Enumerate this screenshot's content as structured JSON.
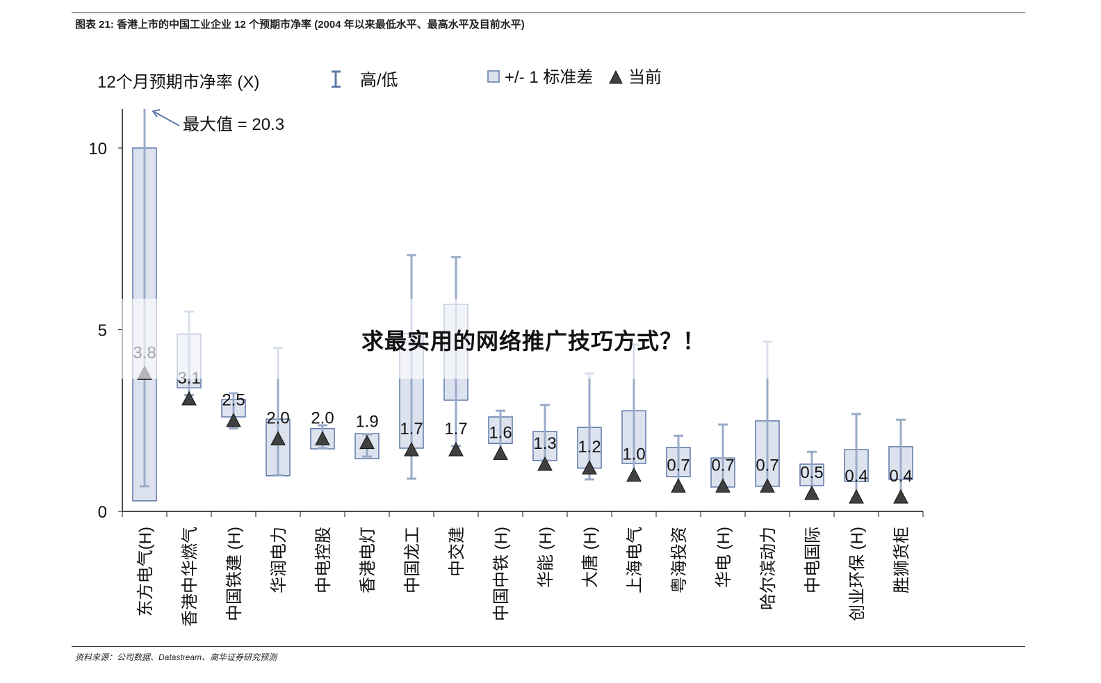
{
  "figure_title": "图表 21:   香港上市的中国工业企业 12 个预期市净率 (2004 年以来最低水平、最高水平及目前水平)",
  "source": "资料来源：公司数据、Datastream、高华证券研究预测",
  "watermark": "求最实用的网络推广技巧方式？！",
  "colors": {
    "box_fill": "#dde3ee",
    "box_stroke": "#5f78a8",
    "whisker": "#9aabc8",
    "marker": "#404040"
  },
  "chart_data": {
    "type": "box",
    "ylabel": "12个月预期市净率 (X)",
    "ylim": [
      0,
      11
    ],
    "yticks": [
      0,
      5,
      10
    ],
    "grid": false,
    "legend": {
      "position": "top",
      "items": [
        {
          "icon": "whisker-icon",
          "label": "高/低"
        },
        {
          "icon": "box-icon",
          "label": "+/- 1 标准差"
        },
        {
          "icon": "triangle-icon",
          "label": "当前"
        }
      ]
    },
    "annotation": "最大值 = 20.3",
    "categories": [
      "东方电气(H)",
      "香港中华燃气",
      "中国铁建 (H)",
      "华润电力",
      "中电控股",
      "香港电灯",
      "中国龙工",
      "中交建",
      "中国中铁 (H)",
      "华能 (H)",
      "大唐 (H)",
      "上海电气",
      "粤海投资",
      "华电 (H)",
      "哈尔滨动力",
      "中电国际",
      "创业环保 (H)",
      "胜狮货柜"
    ],
    "high": [
      20.3,
      5.5,
      3.25,
      4.5,
      2.37,
      2.12,
      7.05,
      7.0,
      2.77,
      2.93,
      3.79,
      4.59,
      2.08,
      2.39,
      4.67,
      1.64,
      2.68,
      2.52
    ],
    "low": [
      0.69,
      3.2,
      2.28,
      1.0,
      1.74,
      1.51,
      0.9,
      1.8,
      1.45,
      1.4,
      0.88,
      0.88,
      0.69,
      0.67,
      0.69,
      0.46,
      0.36,
      0.25
    ],
    "sd_upper": [
      10.0,
      4.88,
      3.08,
      2.54,
      2.28,
      2.14,
      4.9,
      5.7,
      2.6,
      2.2,
      2.31,
      2.77,
      1.76,
      1.47,
      2.49,
      1.3,
      1.7,
      1.78
    ],
    "sd_lower": [
      0.29,
      3.4,
      2.6,
      0.98,
      1.72,
      1.45,
      1.74,
      3.06,
      1.87,
      1.4,
      1.19,
      1.32,
      0.96,
      0.67,
      0.69,
      0.71,
      0.82,
      0.88
    ],
    "current": [
      3.8,
      3.1,
      2.5,
      2.0,
      2.0,
      1.9,
      1.7,
      1.7,
      1.6,
      1.3,
      1.2,
      1.0,
      0.7,
      0.7,
      0.7,
      0.5,
      0.4,
      0.4
    ],
    "current_labels": [
      "3.8",
      "3.1",
      "2.5",
      "2.0",
      "2.0",
      "1.9",
      "1.7",
      "1.7",
      "1.6",
      "1.3",
      "1.2",
      "1.0",
      "0.7",
      "0.7",
      "0.7",
      "0.5",
      "0.4",
      "0.4"
    ]
  }
}
